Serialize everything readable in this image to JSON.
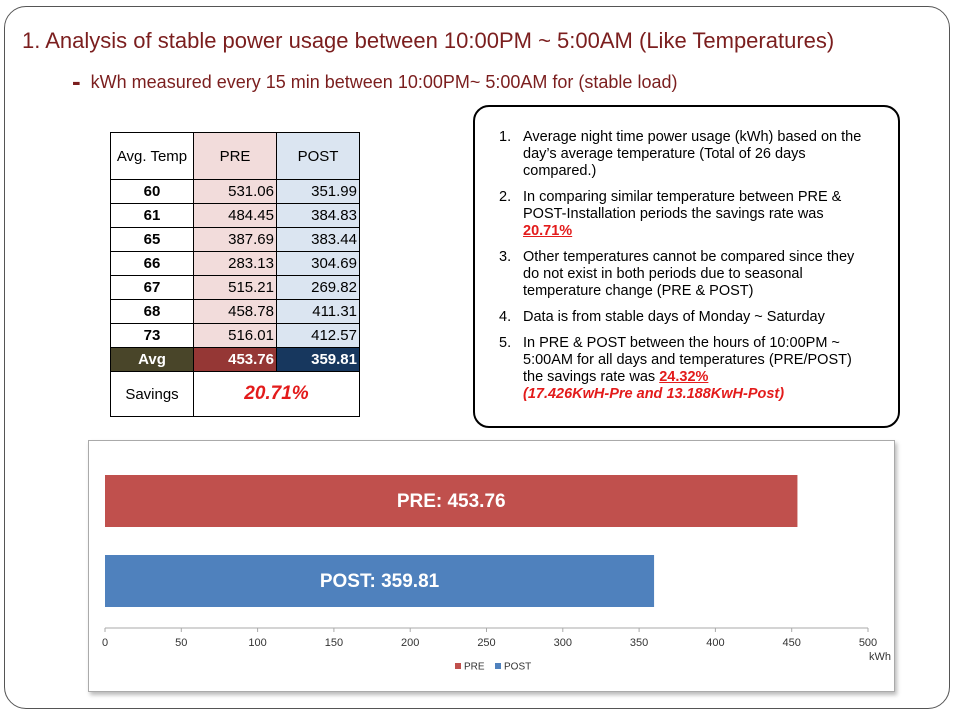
{
  "header": {
    "title": "1. Analysis of stable power usage between 10:00PM ~ 5:00AM (Like Temperatures)",
    "dash": "-",
    "subtitle": "kWh measured every 15 min between 10:00PM~ 5:00AM for (stable load)"
  },
  "table": {
    "columns": [
      "Avg. Temp",
      "PRE",
      "POST"
    ],
    "rows": [
      [
        "60",
        "531.06",
        "351.99"
      ],
      [
        "61",
        "484.45",
        "384.83"
      ],
      [
        "65",
        "387.69",
        "383.44"
      ],
      [
        "66",
        "283.13",
        "304.69"
      ],
      [
        "67",
        "515.21",
        "269.82"
      ],
      [
        "68",
        "458.78",
        "411.31"
      ],
      [
        "73",
        "516.01",
        "412.57"
      ]
    ],
    "avg": [
      "Avg",
      "453.76",
      "359.81"
    ],
    "savings": [
      "Savings",
      "20.71%"
    ]
  },
  "notes": {
    "items": [
      {
        "num": "1.",
        "text": "Average night time power usage (kWh) based on the day’s average temperature (Total of 26 days compared.)"
      },
      {
        "num": "2.",
        "text": "In comparing similar temperature between PRE & POST-Installation periods the savings rate was",
        "highlight": "20.71%"
      },
      {
        "num": "3.",
        "text": "Other temperatures cannot be compared since they do not exist in both periods due to seasonal temperature change (PRE & POST)"
      },
      {
        "num": "4.",
        "text": "Data is from stable days of Monday ~ Saturday"
      },
      {
        "num": "5.",
        "text": "In PRE & POST between the hours of 10:00PM ~ 5:00AM for all days and temperatures (PRE/POST) the savings rate was",
        "highlight": "24.32%",
        "extra": "(17.426KwH-Pre and 13.188KwH-Post)"
      }
    ]
  },
  "chart_data": {
    "type": "hbar",
    "series": [
      {
        "name": "PRE",
        "color": "#c0504d",
        "values": [
          453.76
        ],
        "value_labels": [
          "PRE: 453.76"
        ]
      },
      {
        "name": "POST",
        "color": "#4f81bd",
        "values": [
          359.81
        ],
        "value_labels": [
          "POST: 359.81"
        ]
      }
    ],
    "xlim": [
      0,
      500
    ],
    "xticks": [
      0,
      50,
      100,
      150,
      200,
      250,
      300,
      350,
      400,
      450,
      500
    ],
    "xlabel": "kWh",
    "legend": "bottom"
  }
}
